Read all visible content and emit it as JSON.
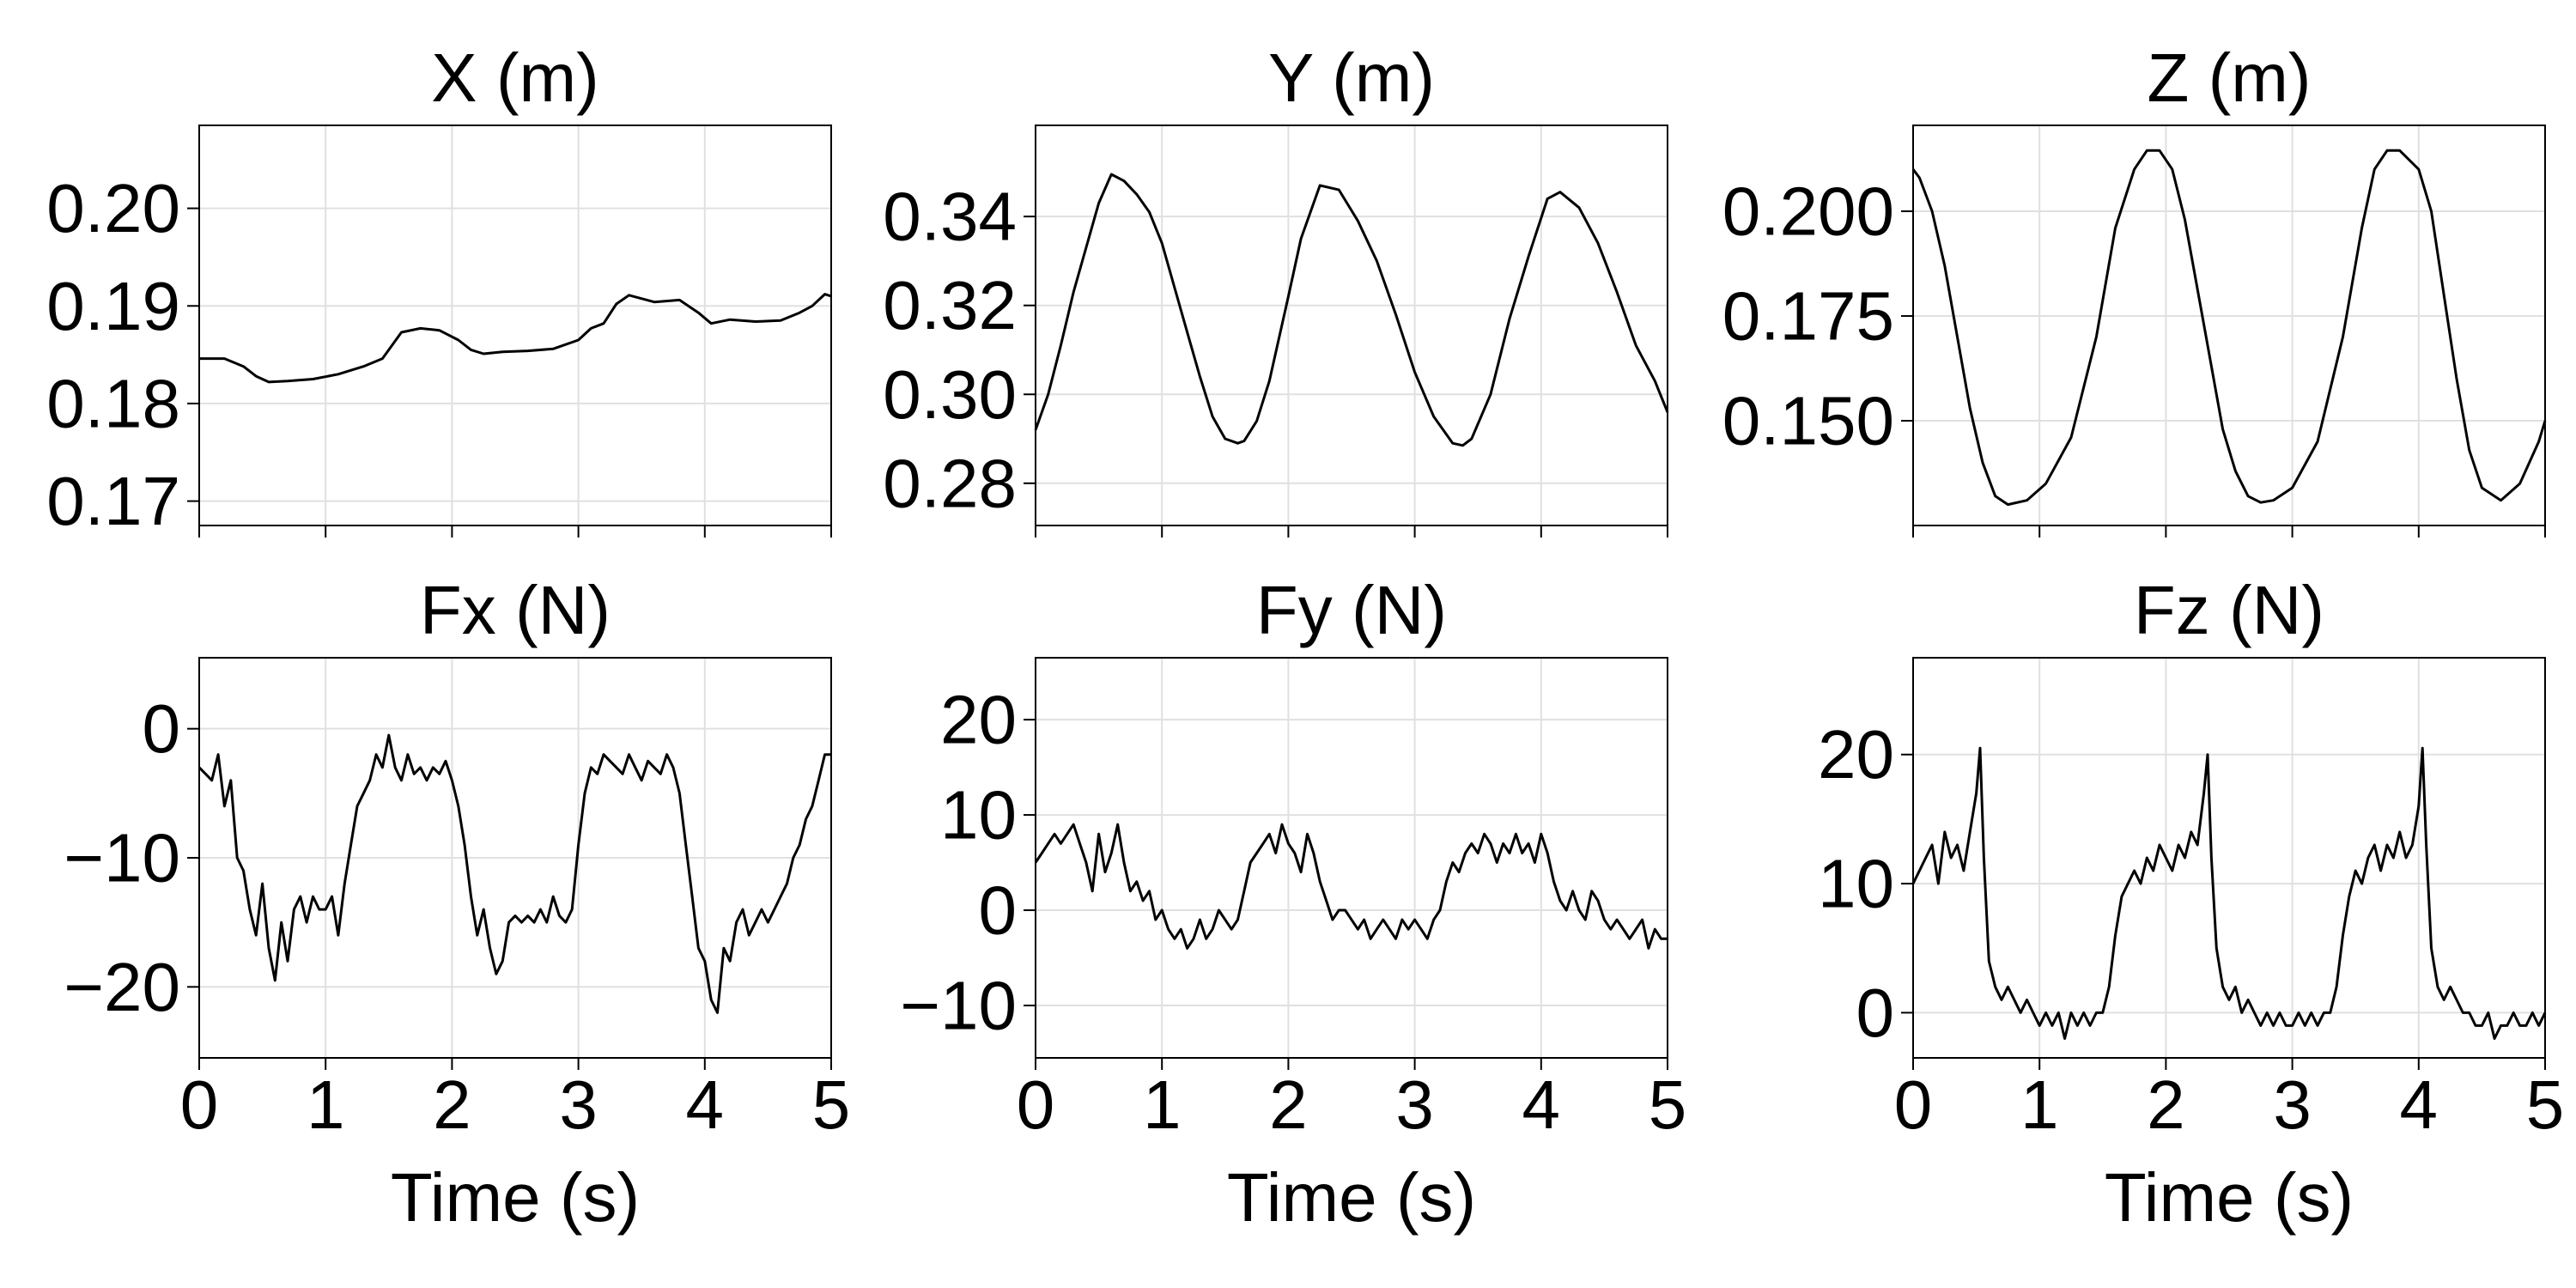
{
  "chart_data": [
    {
      "type": "line",
      "title": "X (m)",
      "xlabel": "",
      "ylabel": "",
      "xlim": [
        0,
        5
      ],
      "ylim": [
        0.1675,
        0.2085
      ],
      "grid": true,
      "xticks": [
        0,
        1,
        2,
        3,
        4,
        5
      ],
      "show_xtick_labels": false,
      "yticks": [
        0.17,
        0.18,
        0.19,
        0.2
      ],
      "ytick_labels": [
        "0.17",
        "0.18",
        "0.19",
        "0.20"
      ],
      "series": [
        {
          "color": "#000000",
          "x": [
            0,
            0.2,
            0.35,
            0.45,
            0.55,
            0.7,
            0.9,
            1.1,
            1.3,
            1.45,
            1.6,
            1.75,
            1.9,
            2.05,
            2.15,
            2.25,
            2.4,
            2.6,
            2.8,
            3.0,
            3.1,
            3.2,
            3.3,
            3.4,
            3.6,
            3.8,
            3.95,
            4.05,
            4.2,
            4.4,
            4.6,
            4.75,
            4.85,
            4.95,
            5.0
          ],
          "y": [
            0.1846,
            0.1846,
            0.1838,
            0.1828,
            0.1822,
            0.1823,
            0.1825,
            0.183,
            0.1838,
            0.1846,
            0.1873,
            0.1877,
            0.1875,
            0.1865,
            0.1855,
            0.1851,
            0.1853,
            0.1854,
            0.1856,
            0.1865,
            0.1877,
            0.1882,
            0.1902,
            0.1911,
            0.1904,
            0.1906,
            0.1893,
            0.1882,
            0.1886,
            0.1884,
            0.1885,
            0.1893,
            0.19,
            0.1912,
            0.191
          ]
        }
      ]
    },
    {
      "type": "line",
      "title": "Y (m)",
      "xlabel": "",
      "ylabel": "",
      "xlim": [
        0,
        5
      ],
      "ylim": [
        0.2705,
        0.3605
      ],
      "grid": true,
      "xticks": [
        0,
        1,
        2,
        3,
        4,
        5
      ],
      "show_xtick_labels": false,
      "yticks": [
        0.28,
        0.3,
        0.32,
        0.34
      ],
      "ytick_labels": [
        "0.28",
        "0.30",
        "0.32",
        "0.34"
      ],
      "series": [
        {
          "color": "#000000",
          "x": [
            0,
            0.1,
            0.2,
            0.3,
            0.4,
            0.5,
            0.6,
            0.7,
            0.8,
            0.9,
            1.0,
            1.1,
            1.2,
            1.3,
            1.4,
            1.5,
            1.6,
            1.65,
            1.75,
            1.85,
            2.0,
            2.1,
            2.25,
            2.4,
            2.55,
            2.7,
            2.85,
            3.0,
            3.15,
            3.3,
            3.38,
            3.45,
            3.6,
            3.75,
            3.9,
            4.05,
            4.15,
            4.3,
            4.45,
            4.6,
            4.75,
            4.9,
            5.0
          ],
          "y": [
            0.292,
            0.3,
            0.311,
            0.323,
            0.333,
            0.343,
            0.3495,
            0.348,
            0.345,
            0.341,
            0.334,
            0.324,
            0.314,
            0.304,
            0.295,
            0.29,
            0.289,
            0.2895,
            0.294,
            0.303,
            0.322,
            0.335,
            0.347,
            0.346,
            0.339,
            0.33,
            0.318,
            0.305,
            0.295,
            0.289,
            0.2885,
            0.29,
            0.3,
            0.317,
            0.331,
            0.344,
            0.3455,
            0.342,
            0.334,
            0.323,
            0.311,
            0.303,
            0.296
          ]
        }
      ]
    },
    {
      "type": "line",
      "title": "Z (m)",
      "xlabel": "",
      "ylabel": "",
      "xlim": [
        0,
        5
      ],
      "ylim": [
        0.125,
        0.2205
      ],
      "grid": true,
      "xticks": [
        0,
        1,
        2,
        3,
        4,
        5
      ],
      "show_xtick_labels": false,
      "yticks": [
        0.15,
        0.175,
        0.2
      ],
      "ytick_labels": [
        "0.150",
        "0.175",
        "0.200"
      ],
      "series": [
        {
          "color": "#000000",
          "x": [
            0,
            0.05,
            0.15,
            0.25,
            0.35,
            0.45,
            0.55,
            0.65,
            0.75,
            0.9,
            1.05,
            1.25,
            1.45,
            1.6,
            1.75,
            1.85,
            1.95,
            2.05,
            2.15,
            2.3,
            2.45,
            2.55,
            2.65,
            2.75,
            2.85,
            3.0,
            3.2,
            3.4,
            3.55,
            3.65,
            3.75,
            3.85,
            4.0,
            4.1,
            4.2,
            4.3,
            4.4,
            4.5,
            4.65,
            4.8,
            4.95,
            5.0
          ],
          "y": [
            0.21,
            0.208,
            0.2,
            0.187,
            0.17,
            0.153,
            0.14,
            0.132,
            0.13,
            0.131,
            0.135,
            0.146,
            0.17,
            0.196,
            0.21,
            0.2145,
            0.2145,
            0.21,
            0.198,
            0.173,
            0.148,
            0.138,
            0.132,
            0.1305,
            0.131,
            0.134,
            0.145,
            0.17,
            0.196,
            0.21,
            0.2145,
            0.2145,
            0.21,
            0.2,
            0.18,
            0.16,
            0.143,
            0.134,
            0.131,
            0.135,
            0.145,
            0.15
          ]
        }
      ]
    },
    {
      "type": "line",
      "title": "Fx (N)",
      "xlabel": "Time (s)",
      "ylabel": "",
      "xlim": [
        0,
        5
      ],
      "ylim": [
        -25.5,
        5.5
      ],
      "grid": true,
      "xticks": [
        0,
        1,
        2,
        3,
        4,
        5
      ],
      "xtick_labels": [
        "0",
        "1",
        "2",
        "3",
        "4",
        "5"
      ],
      "show_xtick_labels": true,
      "yticks": [
        -20,
        -10,
        0
      ],
      "ytick_labels": [
        "−20",
        "−10",
        "0"
      ],
      "series": [
        {
          "color": "#000000",
          "x": [
            0,
            0.05,
            0.1,
            0.15,
            0.2,
            0.25,
            0.3,
            0.35,
            0.4,
            0.45,
            0.5,
            0.55,
            0.6,
            0.65,
            0.7,
            0.75,
            0.8,
            0.85,
            0.9,
            0.95,
            1.0,
            1.05,
            1.1,
            1.15,
            1.2,
            1.25,
            1.3,
            1.35,
            1.4,
            1.45,
            1.5,
            1.55,
            1.6,
            1.65,
            1.7,
            1.75,
            1.8,
            1.85,
            1.9,
            1.95,
            2.0,
            2.05,
            2.1,
            2.15,
            2.2,
            2.25,
            2.3,
            2.35,
            2.4,
            2.45,
            2.5,
            2.55,
            2.6,
            2.65,
            2.7,
            2.75,
            2.8,
            2.85,
            2.9,
            2.95,
            3.0,
            3.05,
            3.1,
            3.15,
            3.2,
            3.25,
            3.3,
            3.35,
            3.4,
            3.45,
            3.5,
            3.55,
            3.6,
            3.65,
            3.7,
            3.75,
            3.8,
            3.85,
            3.9,
            3.95,
            4.0,
            4.05,
            4.1,
            4.15,
            4.2,
            4.25,
            4.3,
            4.35,
            4.4,
            4.45,
            4.5,
            4.55,
            4.6,
            4.65,
            4.7,
            4.75,
            4.8,
            4.85,
            4.9,
            4.95,
            5.0
          ],
          "y": [
            -3,
            -3.5,
            -4,
            -2,
            -6,
            -4,
            -10,
            -11,
            -14,
            -16,
            -12,
            -17,
            -19.5,
            -15,
            -18,
            -14,
            -13,
            -15,
            -13,
            -14,
            -14,
            -13,
            -16,
            -12,
            -9,
            -6,
            -5,
            -4,
            -2,
            -3,
            -0.5,
            -3,
            -4,
            -2,
            -3.5,
            -3,
            -4,
            -3,
            -3.5,
            -2.5,
            -4,
            -6,
            -9,
            -13,
            -16,
            -14,
            -17,
            -19,
            -18,
            -15,
            -14.5,
            -15,
            -14.5,
            -15,
            -14,
            -15,
            -13,
            -14.5,
            -15,
            -14,
            -9,
            -5,
            -3,
            -3.5,
            -2,
            -2.5,
            -3,
            -3.5,
            -2,
            -3,
            -4,
            -2.5,
            -3,
            -3.5,
            -2,
            -3,
            -5,
            -9,
            -13,
            -17,
            -18,
            -21,
            -22,
            -17,
            -18,
            -15,
            -14,
            -16,
            -15,
            -14,
            -15,
            -14,
            -13,
            -12,
            -10,
            -9,
            -7,
            -6,
            -4,
            -2,
            -2
          ]
        }
      ]
    },
    {
      "type": "line",
      "title": "Fy (N)",
      "xlabel": "Time (s)",
      "ylabel": "",
      "xlim": [
        0,
        5
      ],
      "ylim": [
        -15.5,
        26.5
      ],
      "grid": true,
      "xticks": [
        0,
        1,
        2,
        3,
        4,
        5
      ],
      "xtick_labels": [
        "0",
        "1",
        "2",
        "3",
        "4",
        "5"
      ],
      "show_xtick_labels": true,
      "yticks": [
        -10,
        0,
        10,
        20
      ],
      "ytick_labels": [
        "−10",
        "0",
        "10",
        "20"
      ],
      "series": [
        {
          "color": "#000000",
          "x": [
            0,
            0.05,
            0.1,
            0.15,
            0.2,
            0.25,
            0.3,
            0.35,
            0.4,
            0.45,
            0.5,
            0.55,
            0.6,
            0.65,
            0.7,
            0.75,
            0.8,
            0.85,
            0.9,
            0.95,
            1.0,
            1.05,
            1.1,
            1.15,
            1.2,
            1.25,
            1.3,
            1.35,
            1.4,
            1.45,
            1.5,
            1.55,
            1.6,
            1.65,
            1.7,
            1.75,
            1.8,
            1.85,
            1.9,
            1.95,
            2.0,
            2.05,
            2.1,
            2.15,
            2.2,
            2.25,
            2.3,
            2.35,
            2.4,
            2.45,
            2.5,
            2.55,
            2.6,
            2.65,
            2.7,
            2.75,
            2.8,
            2.85,
            2.9,
            2.95,
            3.0,
            3.05,
            3.1,
            3.15,
            3.2,
            3.25,
            3.3,
            3.35,
            3.4,
            3.45,
            3.5,
            3.55,
            3.6,
            3.65,
            3.7,
            3.75,
            3.8,
            3.85,
            3.9,
            3.95,
            4.0,
            4.05,
            4.1,
            4.15,
            4.2,
            4.25,
            4.3,
            4.35,
            4.4,
            4.45,
            4.5,
            4.55,
            4.6,
            4.65,
            4.7,
            4.75,
            4.8,
            4.85,
            4.9,
            4.95,
            5.0
          ],
          "y": [
            5,
            6,
            7,
            8,
            7,
            8,
            9,
            7,
            5,
            2,
            8,
            4,
            6,
            9,
            5,
            2,
            3,
            1,
            2,
            -1,
            0,
            -2,
            -3,
            -2,
            -4,
            -3,
            -1,
            -3,
            -2,
            0,
            -1,
            -2,
            -1,
            2,
            5,
            6,
            7,
            8,
            6,
            9,
            7,
            6,
            4,
            8,
            6,
            3,
            1,
            -1,
            0,
            0,
            -1,
            -2,
            -1,
            -3,
            -2,
            -1,
            -2,
            -3,
            -1,
            -2,
            -1,
            -2,
            -3,
            -1,
            0,
            3,
            5,
            4,
            6,
            7,
            6,
            8,
            7,
            5,
            7,
            6,
            8,
            6,
            7,
            5,
            8,
            6,
            3,
            1,
            0,
            2,
            0,
            -1,
            2,
            1,
            -1,
            -2,
            -1,
            -2,
            -3,
            -2,
            -1,
            -4,
            -2,
            -3,
            -3
          ]
        }
      ]
    },
    {
      "type": "line",
      "title": "Fz (N)",
      "xlabel": "Time (s)",
      "ylabel": "",
      "xlim": [
        0,
        5
      ],
      "ylim": [
        -3.5,
        27.5
      ],
      "grid": true,
      "xticks": [
        0,
        1,
        2,
        3,
        4,
        5
      ],
      "xtick_labels": [
        "0",
        "1",
        "2",
        "3",
        "4",
        "5"
      ],
      "show_xtick_labels": true,
      "yticks": [
        0,
        10,
        20
      ],
      "ytick_labels": [
        "0",
        "10",
        "20"
      ],
      "series": [
        {
          "color": "#000000",
          "x": [
            0,
            0.05,
            0.1,
            0.15,
            0.2,
            0.25,
            0.3,
            0.35,
            0.4,
            0.45,
            0.5,
            0.53,
            0.56,
            0.6,
            0.65,
            0.7,
            0.75,
            0.8,
            0.85,
            0.9,
            0.95,
            1.0,
            1.05,
            1.1,
            1.15,
            1.2,
            1.25,
            1.3,
            1.35,
            1.4,
            1.45,
            1.5,
            1.55,
            1.6,
            1.65,
            1.7,
            1.75,
            1.8,
            1.85,
            1.9,
            1.95,
            2.0,
            2.05,
            2.1,
            2.15,
            2.2,
            2.25,
            2.3,
            2.33,
            2.36,
            2.4,
            2.45,
            2.5,
            2.55,
            2.6,
            2.65,
            2.7,
            2.75,
            2.8,
            2.85,
            2.9,
            2.95,
            3.0,
            3.05,
            3.1,
            3.15,
            3.2,
            3.25,
            3.3,
            3.35,
            3.4,
            3.45,
            3.5,
            3.55,
            3.6,
            3.65,
            3.7,
            3.75,
            3.8,
            3.85,
            3.9,
            3.95,
            4.0,
            4.03,
            4.06,
            4.1,
            4.15,
            4.2,
            4.25,
            4.3,
            4.35,
            4.4,
            4.45,
            4.5,
            4.55,
            4.6,
            4.65,
            4.7,
            4.75,
            4.8,
            4.85,
            4.9,
            4.95,
            5.0
          ],
          "y": [
            10,
            11,
            12,
            13,
            10,
            14,
            12,
            13,
            11,
            14,
            17,
            20.5,
            12,
            4,
            2,
            1,
            2,
            1,
            0,
            1,
            0,
            -1,
            0,
            -1,
            0,
            -2,
            0,
            -1,
            0,
            -1,
            0,
            0,
            2,
            6,
            9,
            10,
            11,
            10,
            12,
            11,
            13,
            12,
            11,
            13,
            12,
            14,
            13,
            17,
            20,
            12,
            5,
            2,
            1,
            2,
            0,
            1,
            0,
            -1,
            0,
            -1,
            0,
            -1,
            -1,
            0,
            -1,
            0,
            -1,
            0,
            0,
            2,
            6,
            9,
            11,
            10,
            12,
            13,
            11,
            13,
            12,
            14,
            12,
            13,
            16,
            20.5,
            13,
            5,
            2,
            1,
            2,
            1,
            0,
            0,
            -1,
            -1,
            0,
            -2,
            -1,
            -1,
            0,
            -1,
            -1,
            0,
            -1,
            0
          ]
        }
      ]
    }
  ]
}
